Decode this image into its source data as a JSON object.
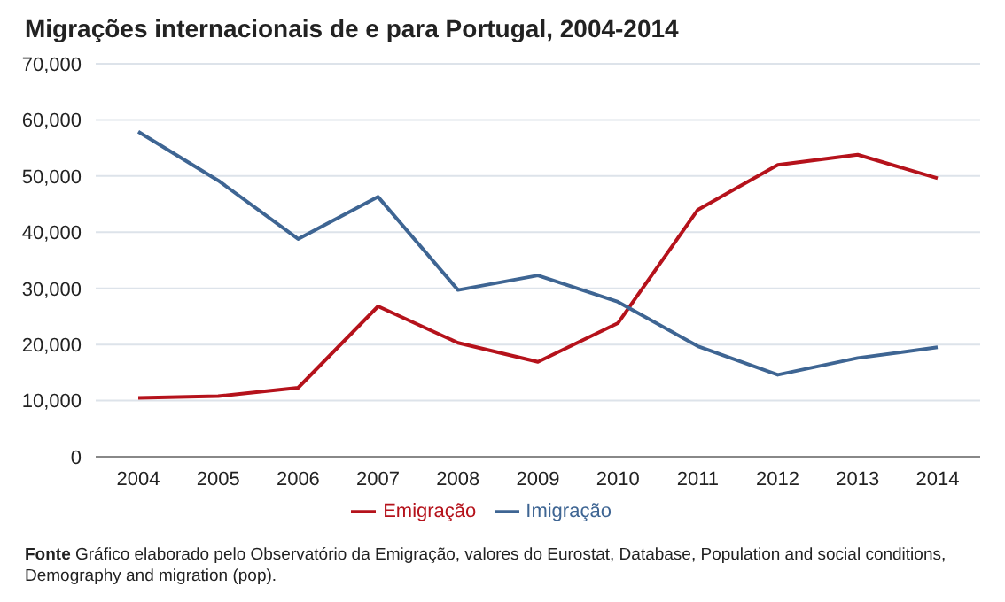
{
  "chart_data": {
    "type": "line",
    "title": "Migrações internacionais de e para Portugal, 2004-2014",
    "categories": [
      "2004",
      "2005",
      "2006",
      "2007",
      "2008",
      "2009",
      "2010",
      "2011",
      "2012",
      "2013",
      "2014"
    ],
    "series": [
      {
        "name": "Emigração",
        "color": "#b5121b",
        "values": [
          10500,
          10800,
          12300,
          26800,
          20300,
          16900,
          23800,
          44000,
          52000,
          53800,
          49600
        ]
      },
      {
        "name": "Imigração",
        "color": "#3e6593",
        "values": [
          57900,
          49200,
          38800,
          46300,
          29700,
          32300,
          27600,
          19700,
          14600,
          17600,
          19500
        ]
      }
    ],
    "ylim": [
      0,
      70000
    ],
    "yticks": [
      0,
      {
        "value": 10000,
        "label": "10,000"
      },
      {
        "value": 20000,
        "label": "20,000"
      },
      {
        "value": 30000,
        "label": "30,000"
      },
      {
        "value": 40000,
        "label": "40,000"
      },
      {
        "value": 50000,
        "label": "50,000"
      },
      {
        "value": 60000,
        "label": "60,000"
      },
      {
        "value": 70000,
        "label": "70,000"
      }
    ],
    "grid": "y",
    "legend": "bottom",
    "marker": "none",
    "line_style": "solid",
    "annotations": [
      "Fonte Gráfico elaborado pelo Observatório da Emigração, valores do Eurostat, Database, Population and social conditions, Demography and migration (pop)."
    ]
  }
}
